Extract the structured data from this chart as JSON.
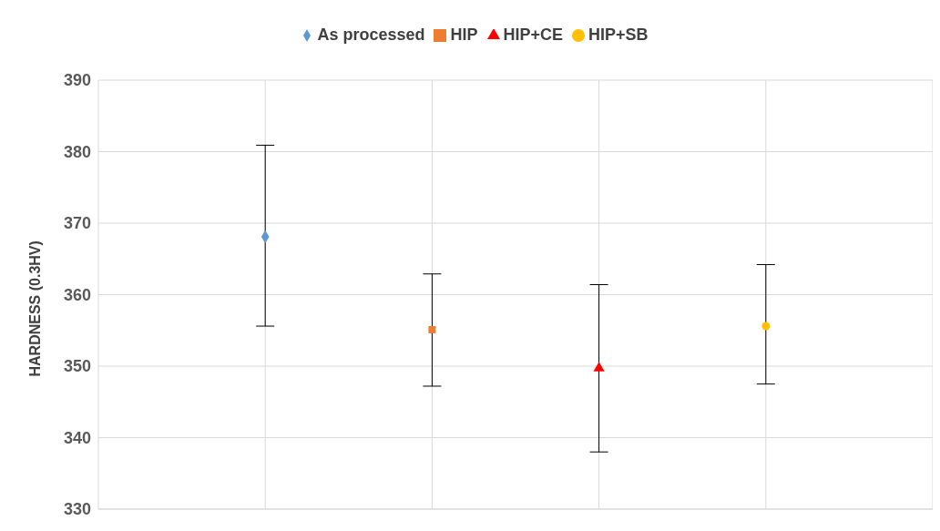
{
  "chart_data": {
    "type": "scatter",
    "ylabel": "HARDNESS (0.3HV)",
    "categories": [
      null,
      null,
      null,
      null
    ],
    "ylim": [
      330,
      390
    ],
    "yticks": [
      330,
      340,
      350,
      360,
      370,
      380,
      390
    ],
    "grid": true,
    "legend": "top",
    "series": [
      {
        "name": "As processed",
        "color": "#5b9bd5",
        "marker": "diamond",
        "values": [
          368.1,
          null,
          null,
          null
        ],
        "errors": [
          [
            355.6,
            380.9
          ],
          null,
          null,
          null
        ]
      },
      {
        "name": "HIP",
        "color": "#ed7d31",
        "marker": "square",
        "values": [
          null,
          355.1,
          null,
          null
        ],
        "errors": [
          null,
          [
            347.2,
            362.9
          ],
          null,
          null
        ]
      },
      {
        "name": "HIP+CE",
        "color": "#ff0000",
        "marker": "triangle",
        "values": [
          null,
          null,
          349.7,
          null
        ],
        "errors": [
          null,
          null,
          [
            338.0,
            361.4
          ],
          null
        ]
      },
      {
        "name": "HIP+SB",
        "color": "#ffc000",
        "marker": "circle",
        "values": [
          null,
          null,
          null,
          355.6
        ],
        "errors": [
          null,
          null,
          null,
          [
            347.5,
            364.2
          ]
        ]
      }
    ]
  }
}
